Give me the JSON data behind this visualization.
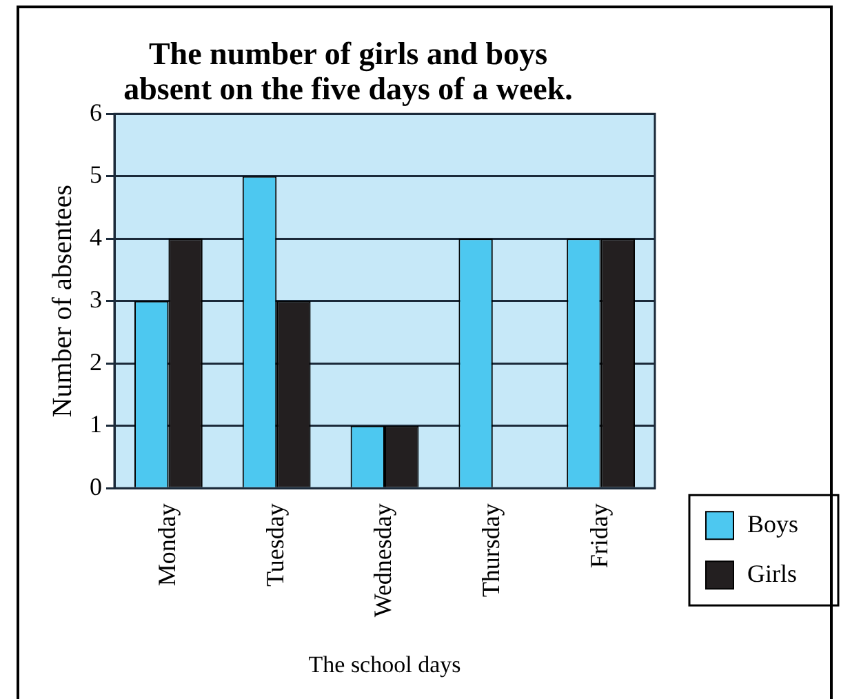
{
  "chart_data": {
    "type": "bar",
    "title": "The number of girls and boys absent on the five days of a week.",
    "xlabel": "The school days",
    "ylabel": "Number of absentees",
    "categories": [
      "Monday",
      "Tuesday",
      "Wednesday",
      "Thursday",
      "Friday"
    ],
    "series": [
      {
        "name": "Boys",
        "color": "#4dc8f0",
        "values": [
          3,
          5,
          1,
          4,
          4
        ]
      },
      {
        "name": "Girls",
        "color": "#231f20",
        "values": [
          4,
          3,
          1,
          0,
          4
        ]
      }
    ],
    "ylim": [
      0,
      6
    ],
    "yticks": [
      0,
      1,
      2,
      3,
      4,
      5,
      6
    ],
    "grid": "y",
    "legend": "right"
  }
}
